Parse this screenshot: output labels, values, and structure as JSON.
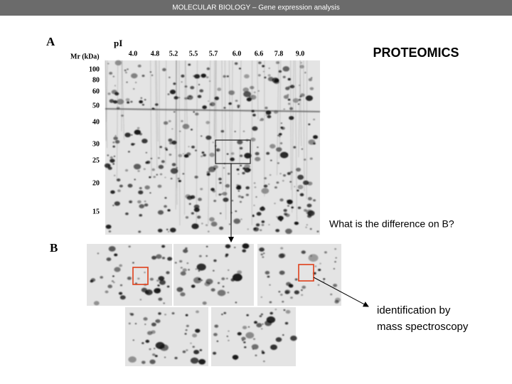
{
  "header": {
    "title": "MOLECULAR BIOLOGY  –  Gene expression analysis"
  },
  "slide": {
    "title": "PROTEOMICS",
    "question": "What is the difference on B?",
    "caption": [
      "identification by",
      "mass spectroscopy"
    ]
  },
  "figure": {
    "panel_a": "A",
    "panel_b": "B",
    "pi_label": "pI",
    "mr_label": "Mr (kDa)",
    "pi_values": [
      "4.0",
      "4.8",
      "5.2",
      "5.5",
      "5.7",
      "6.0",
      "6.6",
      "7.8",
      "9.0"
    ],
    "mr_values": [
      "100",
      "80",
      "60",
      "50",
      "40",
      "30",
      "25",
      "20",
      "15"
    ]
  }
}
